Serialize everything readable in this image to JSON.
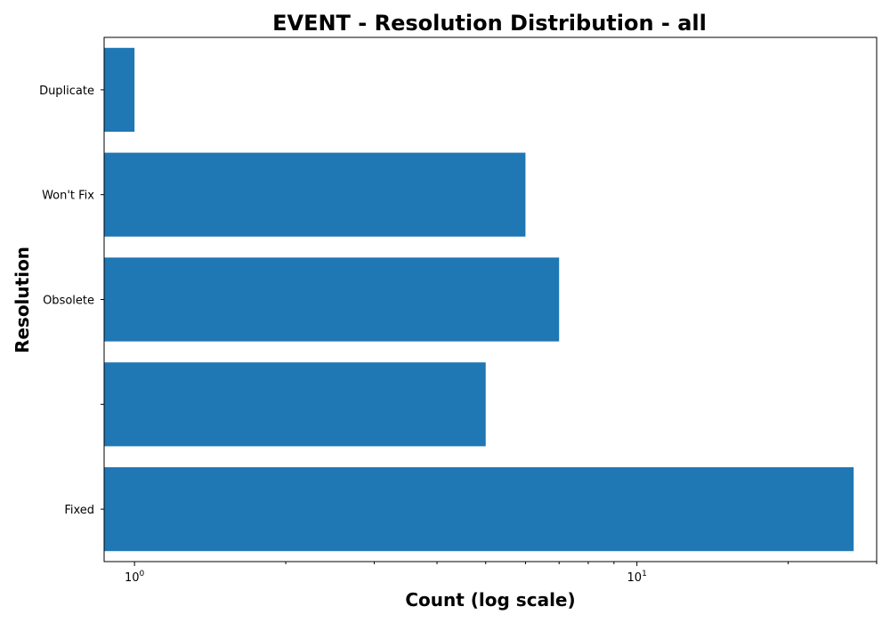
{
  "chart_data": {
    "type": "bar",
    "orientation": "horizontal",
    "title": "EVENT - Resolution Distribution - all",
    "xlabel": "Count (log scale)",
    "ylabel": "Resolution",
    "x_scale": "log",
    "xlim": [
      0.87,
      30
    ],
    "x_ticks": [
      {
        "base": "10",
        "exp": "0",
        "value": 1
      },
      {
        "base": "10",
        "exp": "1",
        "value": 10
      }
    ],
    "x_minor_ticks": [
      2,
      3,
      4,
      5,
      6,
      7,
      8,
      9,
      20,
      30
    ],
    "categories": [
      "Duplicate",
      "Won't Fix",
      "Obsolete",
      "",
      "Fixed"
    ],
    "values": [
      1,
      6,
      7,
      5,
      27
    ],
    "bar_color": "#1f77b4",
    "grid": false
  }
}
